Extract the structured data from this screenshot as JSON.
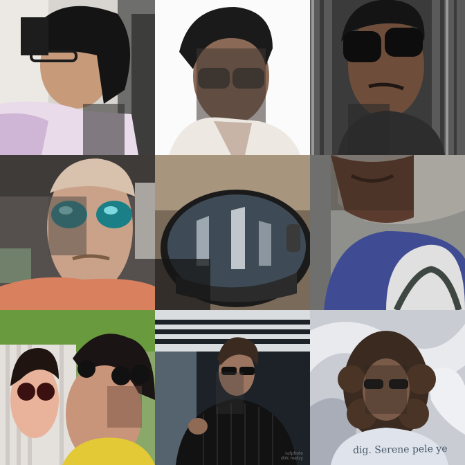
{
  "grid": {
    "columns": 3,
    "rows": 3,
    "tiles": [
      {
        "index": 1,
        "subject": "man-with-sunglasses-driving"
      },
      {
        "index": 2,
        "subject": "man-with-sunglasses-white-background"
      },
      {
        "index": 3,
        "subject": "man-with-sunglasses-wooden-fence"
      },
      {
        "index": 4,
        "subject": "man-with-mirrored-sunglasses-in-car"
      },
      {
        "index": 5,
        "subject": "sunglasses-lens-reflection-closeup"
      },
      {
        "index": 6,
        "subject": "man-tilted-closeup"
      },
      {
        "index": 7,
        "subject": "three-women-with-sunglasses"
      },
      {
        "index": 8,
        "subject": "man-with-sunglasses-pointing"
      },
      {
        "index": 9,
        "subject": "curly-haired-person-distorted"
      }
    ]
  },
  "watermark": {
    "line1": "nzlphoto",
    "line2": "dirk metzy"
  },
  "shirt_text": "dig. Serene pele ye"
}
